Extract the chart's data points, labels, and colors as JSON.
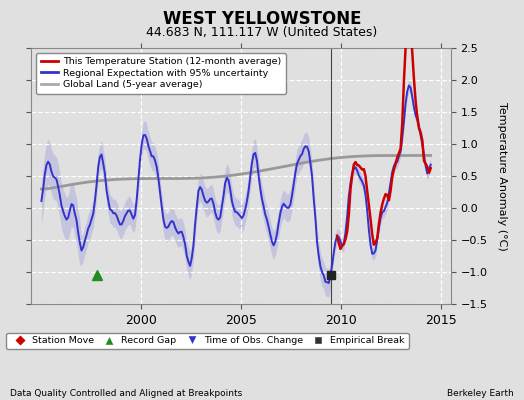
{
  "title": "WEST YELLOWSTONE",
  "subtitle": "44.683 N, 111.117 W (United States)",
  "ylabel": "Temperature Anomaly (°C)",
  "xlabel_left": "Data Quality Controlled and Aligned at Breakpoints",
  "xlabel_right": "Berkeley Earth",
  "xlim": [
    1994.5,
    2015.5
  ],
  "ylim": [
    -1.5,
    2.5
  ],
  "yticks": [
    -1.5,
    -1.0,
    -0.5,
    0.0,
    0.5,
    1.0,
    1.5,
    2.0,
    2.5
  ],
  "xticks": [
    2000,
    2005,
    2010,
    2015
  ],
  "background_color": "#e0e0e0",
  "plot_bg_color": "#e0e0e0",
  "grid_color": "#ffffff",
  "vertical_line_x": 2009.5,
  "record_gap_x": 1997.8,
  "record_gap_y": -1.05,
  "empirical_break_x": 2009.5,
  "empirical_break_y": -1.05,
  "legend_items": [
    {
      "label": "This Temperature Station (12-month average)",
      "color": "#cc0000",
      "lw": 2
    },
    {
      "label": "Regional Expectation with 95% uncertainty",
      "color": "#3333cc",
      "lw": 2
    },
    {
      "label": "Global Land (5-year average)",
      "color": "#aaaaaa",
      "lw": 2
    }
  ],
  "marker_legend": [
    {
      "label": "Station Move",
      "marker": "D",
      "color": "#cc0000"
    },
    {
      "label": "Record Gap",
      "marker": "^",
      "color": "#228B22"
    },
    {
      "label": "Time of Obs. Change",
      "marker": "v",
      "color": "#3333cc"
    },
    {
      "label": "Empirical Break",
      "marker": "s",
      "color": "#333333"
    }
  ],
  "uncertainty_color": "#aaaadd",
  "uncertainty_alpha": 0.5
}
